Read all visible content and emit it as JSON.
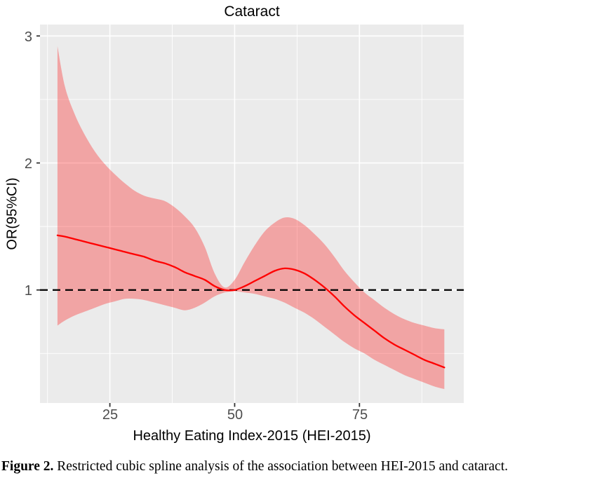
{
  "title": "Cataract",
  "axes": {
    "y_label": "OR(95%CI)",
    "x_label": "Healthy Eating Index-2015 (HEI-2015)"
  },
  "caption": {
    "label": "Figure 2.",
    "text": " Restricted cubic spline analysis of the association between HEI-2015 and cataract."
  },
  "colors": {
    "line": "#FF0000",
    "band": "#FF0000",
    "band_alpha": 0.3,
    "panel_bg": "#EBEBEB",
    "grid": "#FFFFFF",
    "reference": "#000000",
    "tick_mark": "#333333",
    "tick_text": "#4D4D4D",
    "text": "#000000"
  },
  "chart_data": {
    "type": "line",
    "title": "Cataract",
    "xlabel": "Healthy Eating Index-2015 (HEI-2015)",
    "ylabel": "OR(95%CI)",
    "xlim": [
      11,
      95.9
    ],
    "ylim": [
      0.11,
      3.09
    ],
    "x_ticks": [
      25,
      50,
      75
    ],
    "y_ticks": [
      1,
      2,
      3
    ],
    "x_minor_ticks": [
      12.5,
      37.5,
      62.5,
      87.5
    ],
    "y_minor_ticks": [
      0.5,
      1.5,
      2.5
    ],
    "reference_line_or": 1.0,
    "grid": true,
    "legend": false,
    "x": [
      14.5,
      16,
      18,
      20,
      22,
      24,
      26,
      28,
      30,
      32,
      34,
      36,
      38,
      40,
      42,
      44,
      46,
      48,
      50,
      52,
      54,
      56,
      58,
      60,
      62,
      64,
      66,
      68,
      70,
      72,
      74,
      76,
      78,
      80,
      82,
      84,
      86,
      88,
      90,
      92
    ],
    "series": [
      {
        "name": "OR",
        "values": [
          1.43,
          1.42,
          1.4,
          1.38,
          1.36,
          1.34,
          1.32,
          1.3,
          1.28,
          1.26,
          1.23,
          1.21,
          1.18,
          1.14,
          1.11,
          1.08,
          1.03,
          1.0,
          1.0,
          1.03,
          1.07,
          1.11,
          1.15,
          1.17,
          1.16,
          1.13,
          1.08,
          1.02,
          0.95,
          0.87,
          0.8,
          0.74,
          0.68,
          0.62,
          0.57,
          0.53,
          0.49,
          0.45,
          0.42,
          0.39
        ]
      },
      {
        "name": "upper_95CI",
        "values": [
          2.92,
          2.6,
          2.38,
          2.22,
          2.09,
          1.99,
          1.91,
          1.84,
          1.78,
          1.74,
          1.72,
          1.7,
          1.65,
          1.58,
          1.49,
          1.34,
          1.13,
          1.02,
          1.08,
          1.22,
          1.35,
          1.46,
          1.53,
          1.57,
          1.56,
          1.51,
          1.44,
          1.36,
          1.26,
          1.15,
          1.06,
          0.98,
          0.92,
          0.86,
          0.81,
          0.77,
          0.74,
          0.72,
          0.7,
          0.69
        ]
      },
      {
        "name": "lower_95CI",
        "values": [
          0.72,
          0.76,
          0.8,
          0.83,
          0.86,
          0.89,
          0.91,
          0.93,
          0.93,
          0.92,
          0.9,
          0.88,
          0.86,
          0.84,
          0.86,
          0.9,
          0.95,
          0.98,
          0.99,
          0.98,
          0.97,
          0.95,
          0.93,
          0.9,
          0.86,
          0.82,
          0.77,
          0.71,
          0.65,
          0.59,
          0.54,
          0.5,
          0.45,
          0.41,
          0.37,
          0.33,
          0.3,
          0.27,
          0.24,
          0.22
        ]
      }
    ]
  }
}
